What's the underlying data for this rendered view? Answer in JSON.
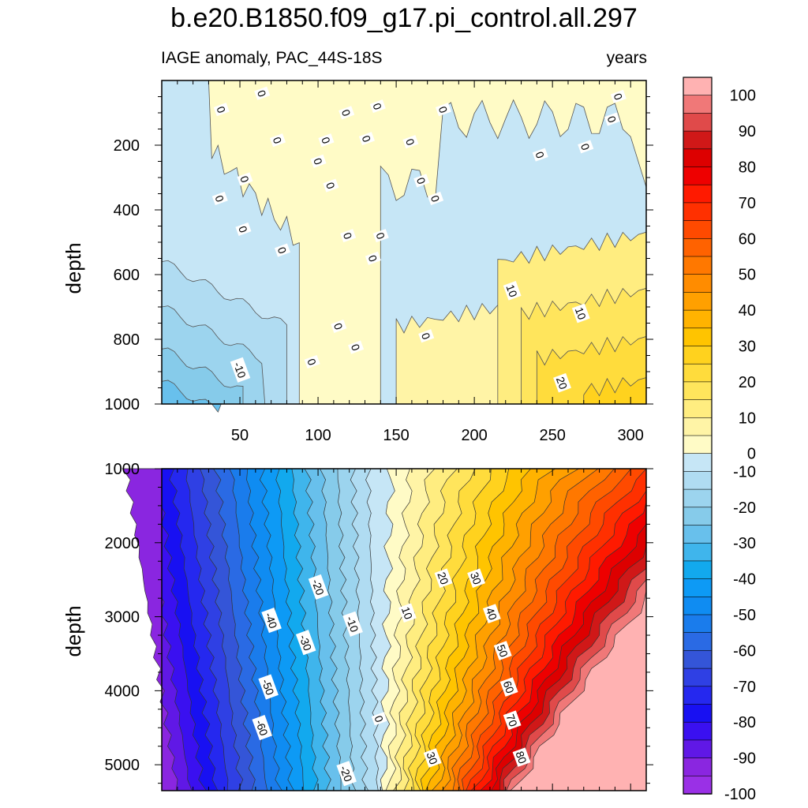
{
  "title": "b.e20.B1850.f09_g17.pi_control.all.297",
  "subtitle_left": "IAGE anomaly, PAC_44S-18S",
  "subtitle_right": "years",
  "chart_data": [
    {
      "type": "heatmap",
      "panel": "upper",
      "xlabel": "",
      "ylabel": "depth",
      "xlim": [
        0,
        310
      ],
      "ylim": [
        1000,
        0
      ],
      "xticks": [
        "50",
        "100",
        "150",
        "200",
        "250",
        "300"
      ],
      "yticks": [
        "200",
        "400",
        "600",
        "800",
        "1000"
      ],
      "contour_labels": [
        {
          "text": "0",
          "x": 38,
          "y": 90
        },
        {
          "text": "0",
          "x": 64,
          "y": 40
        },
        {
          "text": "0",
          "x": 118,
          "y": 100
        },
        {
          "text": "0",
          "x": 138,
          "y": 80
        },
        {
          "text": "0",
          "x": 180,
          "y": 90
        },
        {
          "text": "0",
          "x": 292,
          "y": 50
        },
        {
          "text": "0",
          "x": 288,
          "y": 120
        },
        {
          "text": "0",
          "x": 74,
          "y": 185
        },
        {
          "text": "0",
          "x": 105,
          "y": 185
        },
        {
          "text": "0",
          "x": 131,
          "y": 180
        },
        {
          "text": "0",
          "x": 159,
          "y": 190
        },
        {
          "text": "0",
          "x": 242,
          "y": 230
        },
        {
          "text": "0",
          "x": 271,
          "y": 205
        },
        {
          "text": "0",
          "x": 100,
          "y": 250
        },
        {
          "text": "0",
          "x": 53,
          "y": 305
        },
        {
          "text": "0",
          "x": 108,
          "y": 325
        },
        {
          "text": "0",
          "x": 166,
          "y": 310
        },
        {
          "text": "0",
          "x": 37,
          "y": 365
        },
        {
          "text": "0",
          "x": 175,
          "y": 365
        },
        {
          "text": "0",
          "x": 52,
          "y": 460
        },
        {
          "text": "0",
          "x": 119,
          "y": 480
        },
        {
          "text": "0",
          "x": 140,
          "y": 480
        },
        {
          "text": "0",
          "x": 77,
          "y": 525
        },
        {
          "text": "0",
          "x": 135,
          "y": 550
        },
        {
          "text": "0",
          "x": 113,
          "y": 760
        },
        {
          "text": "0",
          "x": 169,
          "y": 790
        },
        {
          "text": "0",
          "x": 124,
          "y": 825
        },
        {
          "text": "0",
          "x": 96,
          "y": 870
        },
        {
          "text": "-10",
          "x": 50,
          "y": 895
        },
        {
          "text": "10",
          "x": 224,
          "y": 650
        },
        {
          "text": "10",
          "x": 268,
          "y": 720
        },
        {
          "text": "20",
          "x": 256,
          "y": 935
        }
      ]
    },
    {
      "type": "heatmap",
      "panel": "lower",
      "xlabel": "",
      "ylabel": "depth",
      "xlim": [
        0,
        310
      ],
      "ylim": [
        5350,
        1000
      ],
      "yticks": [
        "1000",
        "2000",
        "3000",
        "4000",
        "5000"
      ],
      "contour_labels": [
        {
          "text": "-20",
          "x": 100,
          "y": 2600
        },
        {
          "text": "-40",
          "x": 70,
          "y": 3050
        },
        {
          "text": "-30",
          "x": 92,
          "y": 3350
        },
        {
          "text": "-10",
          "x": 122,
          "y": 3100
        },
        {
          "text": "-50",
          "x": 68,
          "y": 3950
        },
        {
          "text": "-60",
          "x": 64,
          "y": 4500
        },
        {
          "text": "-20",
          "x": 118,
          "y": 5120
        },
        {
          "text": "0",
          "x": 139,
          "y": 4380
        },
        {
          "text": "10",
          "x": 157,
          "y": 2950
        },
        {
          "text": "20",
          "x": 180,
          "y": 2480
        },
        {
          "text": "30",
          "x": 201,
          "y": 2480
        },
        {
          "text": "40",
          "x": 211,
          "y": 2960
        },
        {
          "text": "50",
          "x": 218,
          "y": 3460
        },
        {
          "text": "60",
          "x": 222,
          "y": 3950
        },
        {
          "text": "70",
          "x": 224,
          "y": 4400
        },
        {
          "text": "80",
          "x": 230,
          "y": 4900
        },
        {
          "text": "30",
          "x": 173,
          "y": 4910
        }
      ]
    }
  ],
  "colorbar": {
    "levels": [
      "100",
      "90",
      "80",
      "70",
      "60",
      "50",
      "40",
      "30",
      "20",
      "10",
      "0",
      "-10",
      "-20",
      "-30",
      "-40",
      "-50",
      "-60",
      "-70",
      "-80",
      "-90",
      "-100"
    ],
    "colors_top_to_bottom": [
      "#ffb2b2",
      "#f07878",
      "#e04a4a",
      "#d01818",
      "#dd0000",
      "#ee0000",
      "#ff1a00",
      "#ff3000",
      "#ff4a00",
      "#ff6200",
      "#ff7800",
      "#ff8c00",
      "#ffa000",
      "#ffb300",
      "#ffc400",
      "#ffd21e",
      "#ffdc3c",
      "#ffe55c",
      "#ffed80",
      "#fff4a6",
      "#fffbc6",
      "#c6e6f6",
      "#b0dcf2",
      "#9cd4ee",
      "#86cbea",
      "#68c0ec",
      "#3fb5ec",
      "#12a9ee",
      "#0d9af5",
      "#0f8cf2",
      "#1a7cec",
      "#2a6ae4",
      "#3455d8",
      "#2f40e4",
      "#2528ef",
      "#1810f2",
      "#3a10f0",
      "#6018e6",
      "#8a26e0",
      "#9a30e6"
    ]
  }
}
